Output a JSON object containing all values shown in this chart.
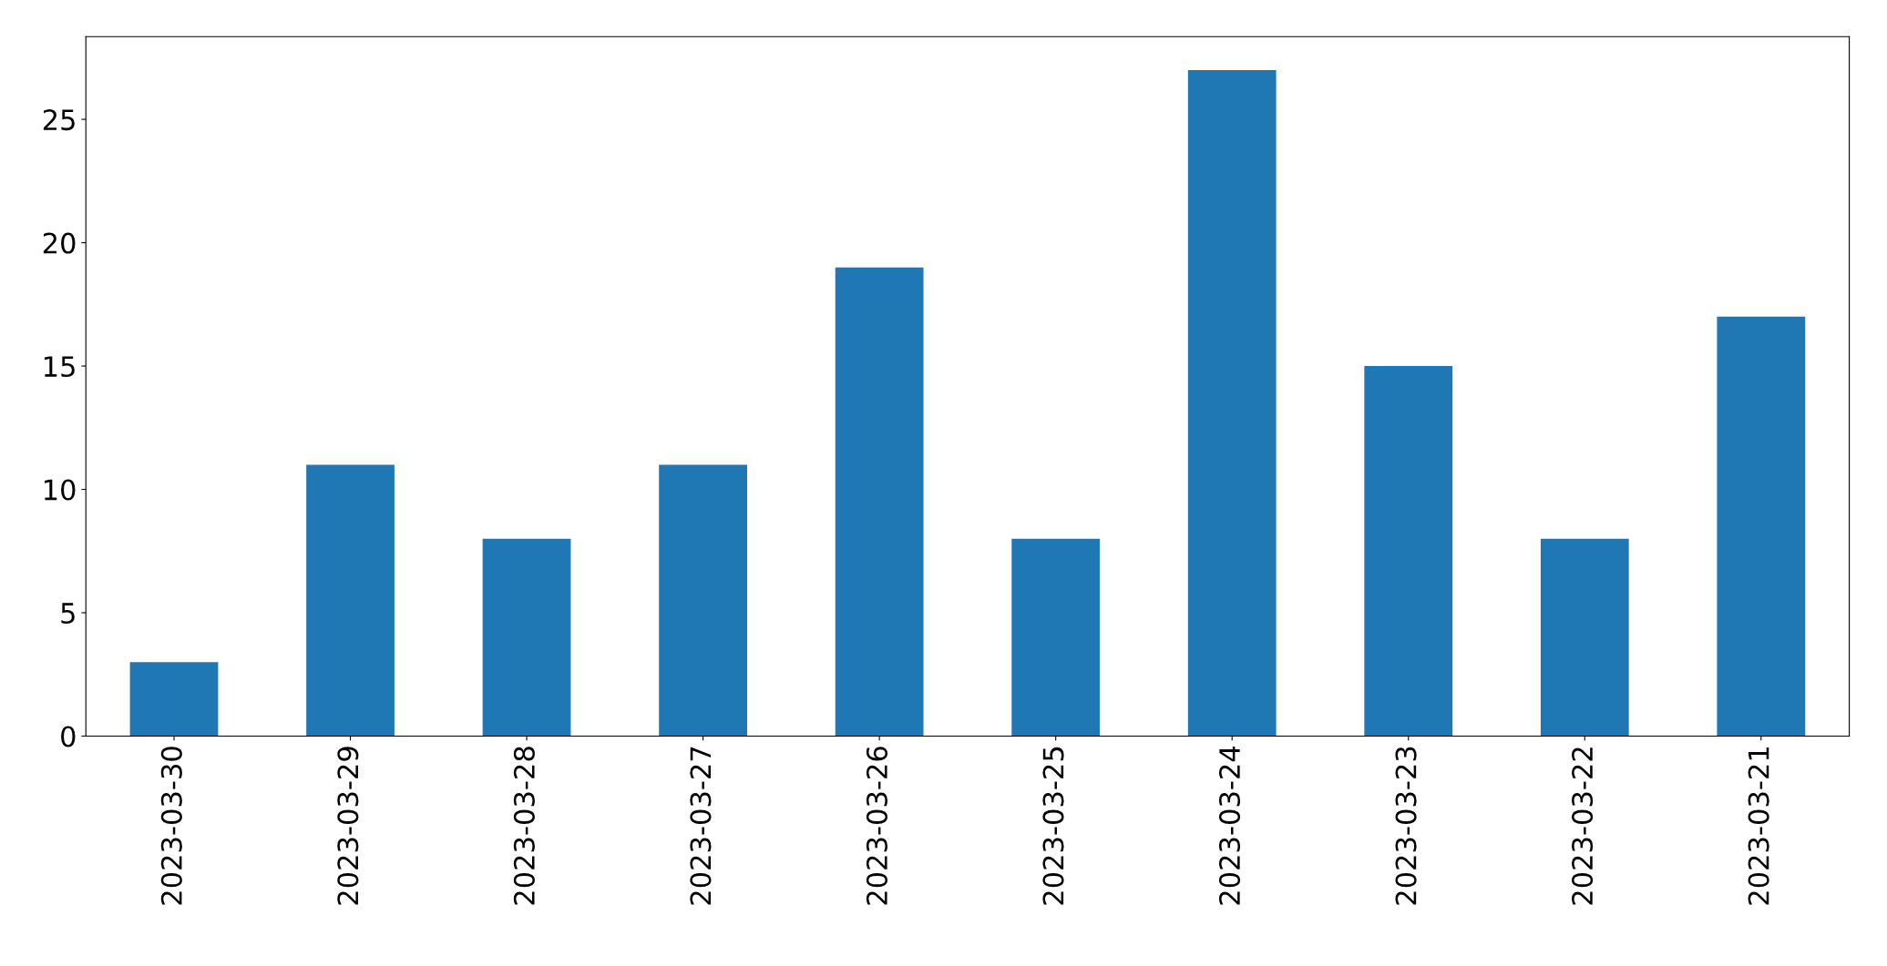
{
  "chart_data": {
    "type": "bar",
    "categories": [
      "2023-03-30",
      "2023-03-29",
      "2023-03-28",
      "2023-03-27",
      "2023-03-26",
      "2023-03-25",
      "2023-03-24",
      "2023-03-23",
      "2023-03-22",
      "2023-03-21"
    ],
    "values": [
      3,
      11,
      8,
      11,
      19,
      8,
      27,
      15,
      8,
      17
    ],
    "color": "#1f77b4",
    "ylim": [
      0,
      28.35
    ],
    "yticks": [
      0,
      5,
      10,
      15,
      20,
      25
    ],
    "grid": false
  }
}
